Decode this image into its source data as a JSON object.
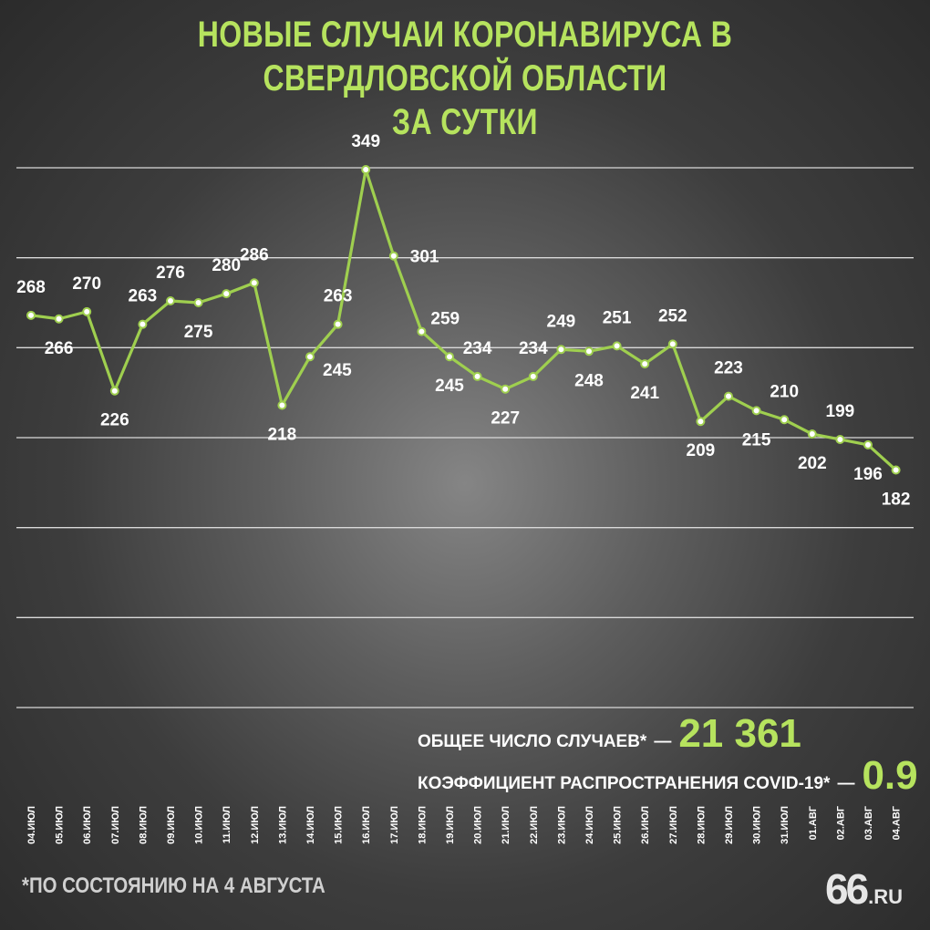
{
  "title_line1": "НОВЫЕ СЛУЧАИ КОРОНАВИРУСА В СВЕРДЛОВСКОЙ ОБЛАСТИ",
  "title_line2": "ЗА СУТКИ",
  "stats": {
    "total_label": "ОБЩЕЕ ЧИСЛО СЛУЧАЕВ*",
    "total_dash": "—",
    "total_value": "21 361",
    "coef_label": "КОЭФФИЦИЕНТ РАСПРОСТРАНЕНИЯ COVID-19*",
    "coef_dash": "—",
    "coef_value": "0.9"
  },
  "footnote": "*ПО СОСТОЯНИЮ НА 4 АВГУСТА",
  "logo": {
    "number": "66",
    "suffix": ".RU"
  },
  "colors": {
    "accent": "#b6e35e",
    "line": "#9fcf4f",
    "text": "#ffffff"
  },
  "chart_data": {
    "type": "line",
    "grid": true,
    "ylim": [
      50,
      350
    ],
    "categories": [
      "04.ИЮЛ",
      "05.ИЮЛ",
      "06.ИЮЛ",
      "07.ИЮЛ",
      "08.ИЮЛ",
      "09.ИЮЛ",
      "10.ИЮЛ",
      "11.ИЮЛ",
      "12.ИЮЛ",
      "13.ИЮЛ",
      "14.ИЮЛ",
      "15.ИЮЛ",
      "16.ИЮЛ",
      "17.ИЮЛ",
      "18.ИЮЛ",
      "19.ИЮЛ",
      "20.ИЮЛ",
      "21.ИЮЛ",
      "22.ИЮЛ",
      "23.ИЮЛ",
      "24.ИЮЛ",
      "25.ИЮЛ",
      "26.ИЮЛ",
      "27.ИЮЛ",
      "28.ИЮЛ",
      "29.ИЮЛ",
      "30.ИЮЛ",
      "31.ИЮЛ",
      "01.АВГ",
      "02.АВГ",
      "03.АВГ",
      "04.АВГ"
    ],
    "values": [
      268,
      266,
      270,
      226,
      263,
      276,
      275,
      280,
      286,
      218,
      245,
      263,
      349,
      301,
      259,
      245,
      234,
      227,
      234,
      249,
      248,
      251,
      241,
      252,
      209,
      223,
      215,
      210,
      202,
      199,
      196,
      182
    ]
  }
}
